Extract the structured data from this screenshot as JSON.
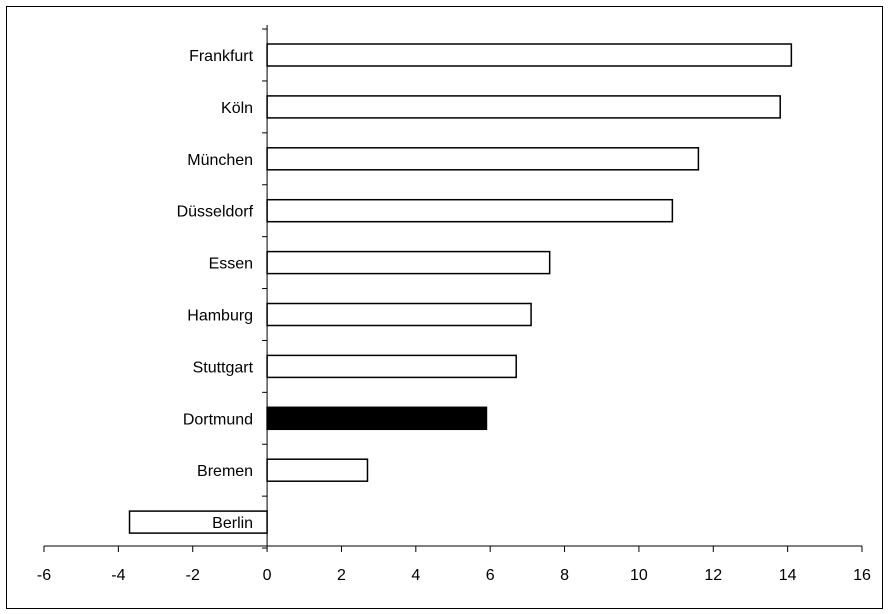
{
  "chart_data": {
    "type": "bar",
    "orientation": "horizontal",
    "title": "",
    "xlabel": "",
    "ylabel": "",
    "categories": [
      "Frankfurt",
      "Köln",
      "München",
      "Düsseldorf",
      "Essen",
      "Hamburg",
      "Stuttgart",
      "Dortmund",
      "Bremen",
      "Berlin"
    ],
    "values": [
      14.1,
      13.8,
      11.6,
      10.9,
      7.6,
      7.1,
      6.7,
      5.9,
      2.7,
      -3.7
    ],
    "highlight": "Dortmund",
    "colors": {
      "default_fill": "#ffffff",
      "highlight_fill": "#000000",
      "stroke": "#000000"
    },
    "xlim": [
      -6,
      16
    ],
    "xticks": [
      -6,
      -4,
      -2,
      0,
      2,
      4,
      6,
      8,
      10,
      12,
      14,
      16
    ],
    "grid": false,
    "legend": "none"
  }
}
